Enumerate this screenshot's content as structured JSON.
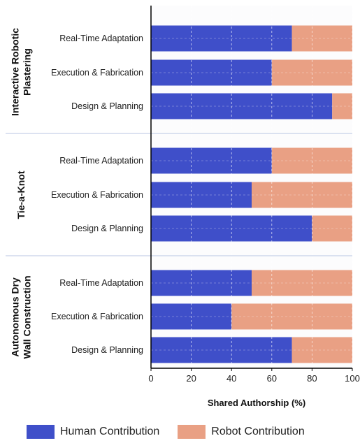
{
  "chart_data": {
    "type": "bar",
    "orientation": "horizontal",
    "stacked": true,
    "xlabel": "Shared Authorship (%)",
    "xlim": [
      0,
      100
    ],
    "xticks": [
      0,
      20,
      40,
      60,
      80,
      100
    ],
    "groups": [
      {
        "name": "Interactive Robotic Plastering",
        "categories": [
          "Real-Time Adaptation",
          "Execution & Fabrication",
          "Design & Planning"
        ],
        "human": [
          70,
          60,
          90
        ],
        "robot": [
          30,
          40,
          10
        ]
      },
      {
        "name": "Tie-a-Knot",
        "categories": [
          "Real-Time Adaptation",
          "Execution & Fabrication",
          "Design & Planning"
        ],
        "human": [
          60,
          50,
          80
        ],
        "robot": [
          40,
          50,
          20
        ]
      },
      {
        "name": "Autonomous Dry Wall Construction",
        "categories": [
          "Real-Time Adaptation",
          "Execution & Fabrication",
          "Design & Planning"
        ],
        "human": [
          50,
          40,
          70
        ],
        "robot": [
          50,
          60,
          30
        ]
      }
    ],
    "series": [
      {
        "name": "Human Contribution",
        "color": "#3f4fc9"
      },
      {
        "name": "Robot Contribution",
        "color": "#e9a084"
      }
    ],
    "legend_position": "bottom",
    "grid": true
  }
}
